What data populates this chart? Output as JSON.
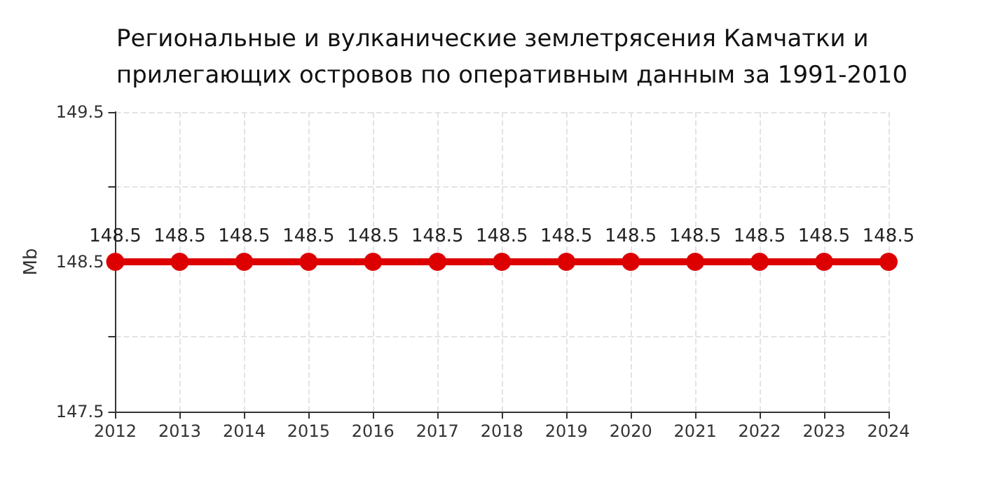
{
  "chart_data": {
    "type": "line",
    "title": "Региональные и вулканические землетрясения Камчатки и\nприлегающих островов по оперативным данным за 1991-2010",
    "ylabel": "Mb",
    "categories": [
      "2012",
      "2013",
      "2014",
      "2015",
      "2016",
      "2017",
      "2018",
      "2019",
      "2020",
      "2021",
      "2022",
      "2023",
      "2024"
    ],
    "series": [
      {
        "color": "#dd0000",
        "values": [
          148.5,
          148.5,
          148.5,
          148.5,
          148.5,
          148.5,
          148.5,
          148.5,
          148.5,
          148.5,
          148.5,
          148.5,
          148.5
        ]
      }
    ],
    "ylim": [
      147.5,
      149.5
    ],
    "yticks": [
      147.5,
      {
        "value": 148,
        "label": null
      },
      148.5,
      {
        "value": 149,
        "label": null
      },
      149.5
    ],
    "grid": true,
    "marker": "circle",
    "line_style": "solid",
    "data_labels": true
  }
}
